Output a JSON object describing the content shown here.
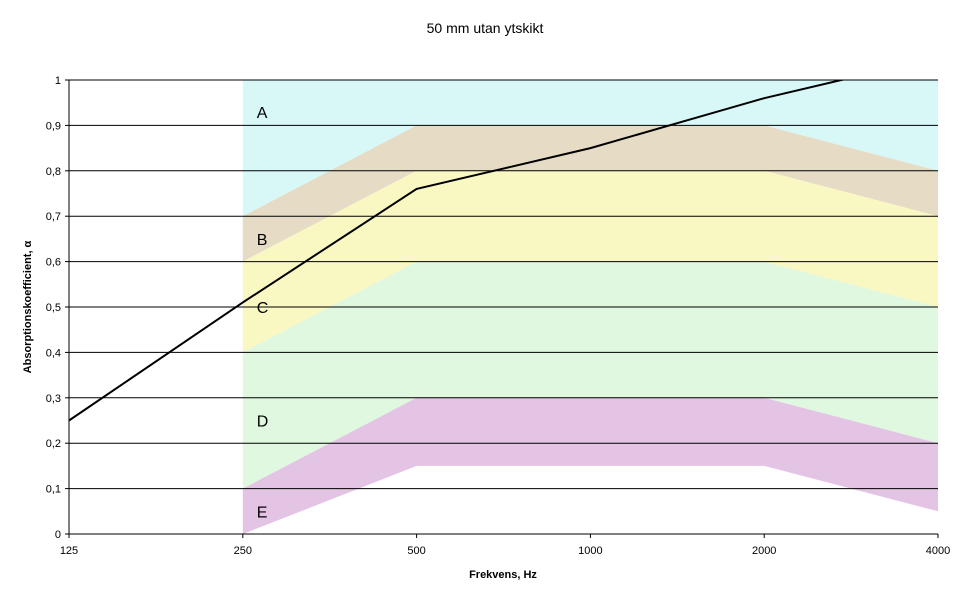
{
  "chart_data": {
    "type": "line",
    "title": "50 mm utan ytskikt",
    "xlabel": "Frekvens, Hz",
    "ylabel": "Absorptionskoefficient, α",
    "x_scale": "log2",
    "x_ticks": [
      "125",
      "250",
      "500",
      "1000",
      "2000",
      "4000"
    ],
    "x": [
      125,
      250,
      500,
      1000,
      2000,
      4000
    ],
    "ylim": [
      0,
      1
    ],
    "y_ticks": [
      "0",
      "0,1",
      "0,2",
      "0,3",
      "0,4",
      "0,5",
      "0,6",
      "0,7",
      "0,8",
      "0,9",
      "1"
    ],
    "grid": true,
    "series": [
      {
        "x": [
          125,
          250,
          500,
          1000,
          2000,
          4000
        ],
        "values": [
          0.25,
          0.51,
          0.76,
          0.85,
          0.96,
          1.05
        ],
        "color": "#000000"
      }
    ],
    "classes": [
      {
        "label": "A",
        "points": [
          [
            250,
            0.7
          ],
          [
            500,
            0.9
          ],
          [
            2000,
            0.9
          ],
          [
            4000,
            0.8
          ]
        ],
        "upper": 1.0,
        "color": "#d8f7f7"
      },
      {
        "label": "B",
        "points": [
          [
            250,
            0.6
          ],
          [
            500,
            0.8
          ],
          [
            2000,
            0.8
          ],
          [
            4000,
            0.7
          ]
        ],
        "color": "#e6dcc6"
      },
      {
        "label": "C",
        "points": [
          [
            250,
            0.4
          ],
          [
            500,
            0.6
          ],
          [
            2000,
            0.6
          ],
          [
            4000,
            0.5
          ]
        ],
        "color": "#f9f7c2"
      },
      {
        "label": "D",
        "points": [
          [
            250,
            0.1
          ],
          [
            500,
            0.3
          ],
          [
            2000,
            0.3
          ],
          [
            4000,
            0.2
          ]
        ],
        "color": "#e0f7e0"
      },
      {
        "label": "E",
        "points": [
          [
            250,
            0.0
          ],
          [
            500,
            0.15
          ],
          [
            2000,
            0.15
          ],
          [
            4000,
            0.05
          ]
        ],
        "color": "#e4c4e4"
      }
    ]
  }
}
